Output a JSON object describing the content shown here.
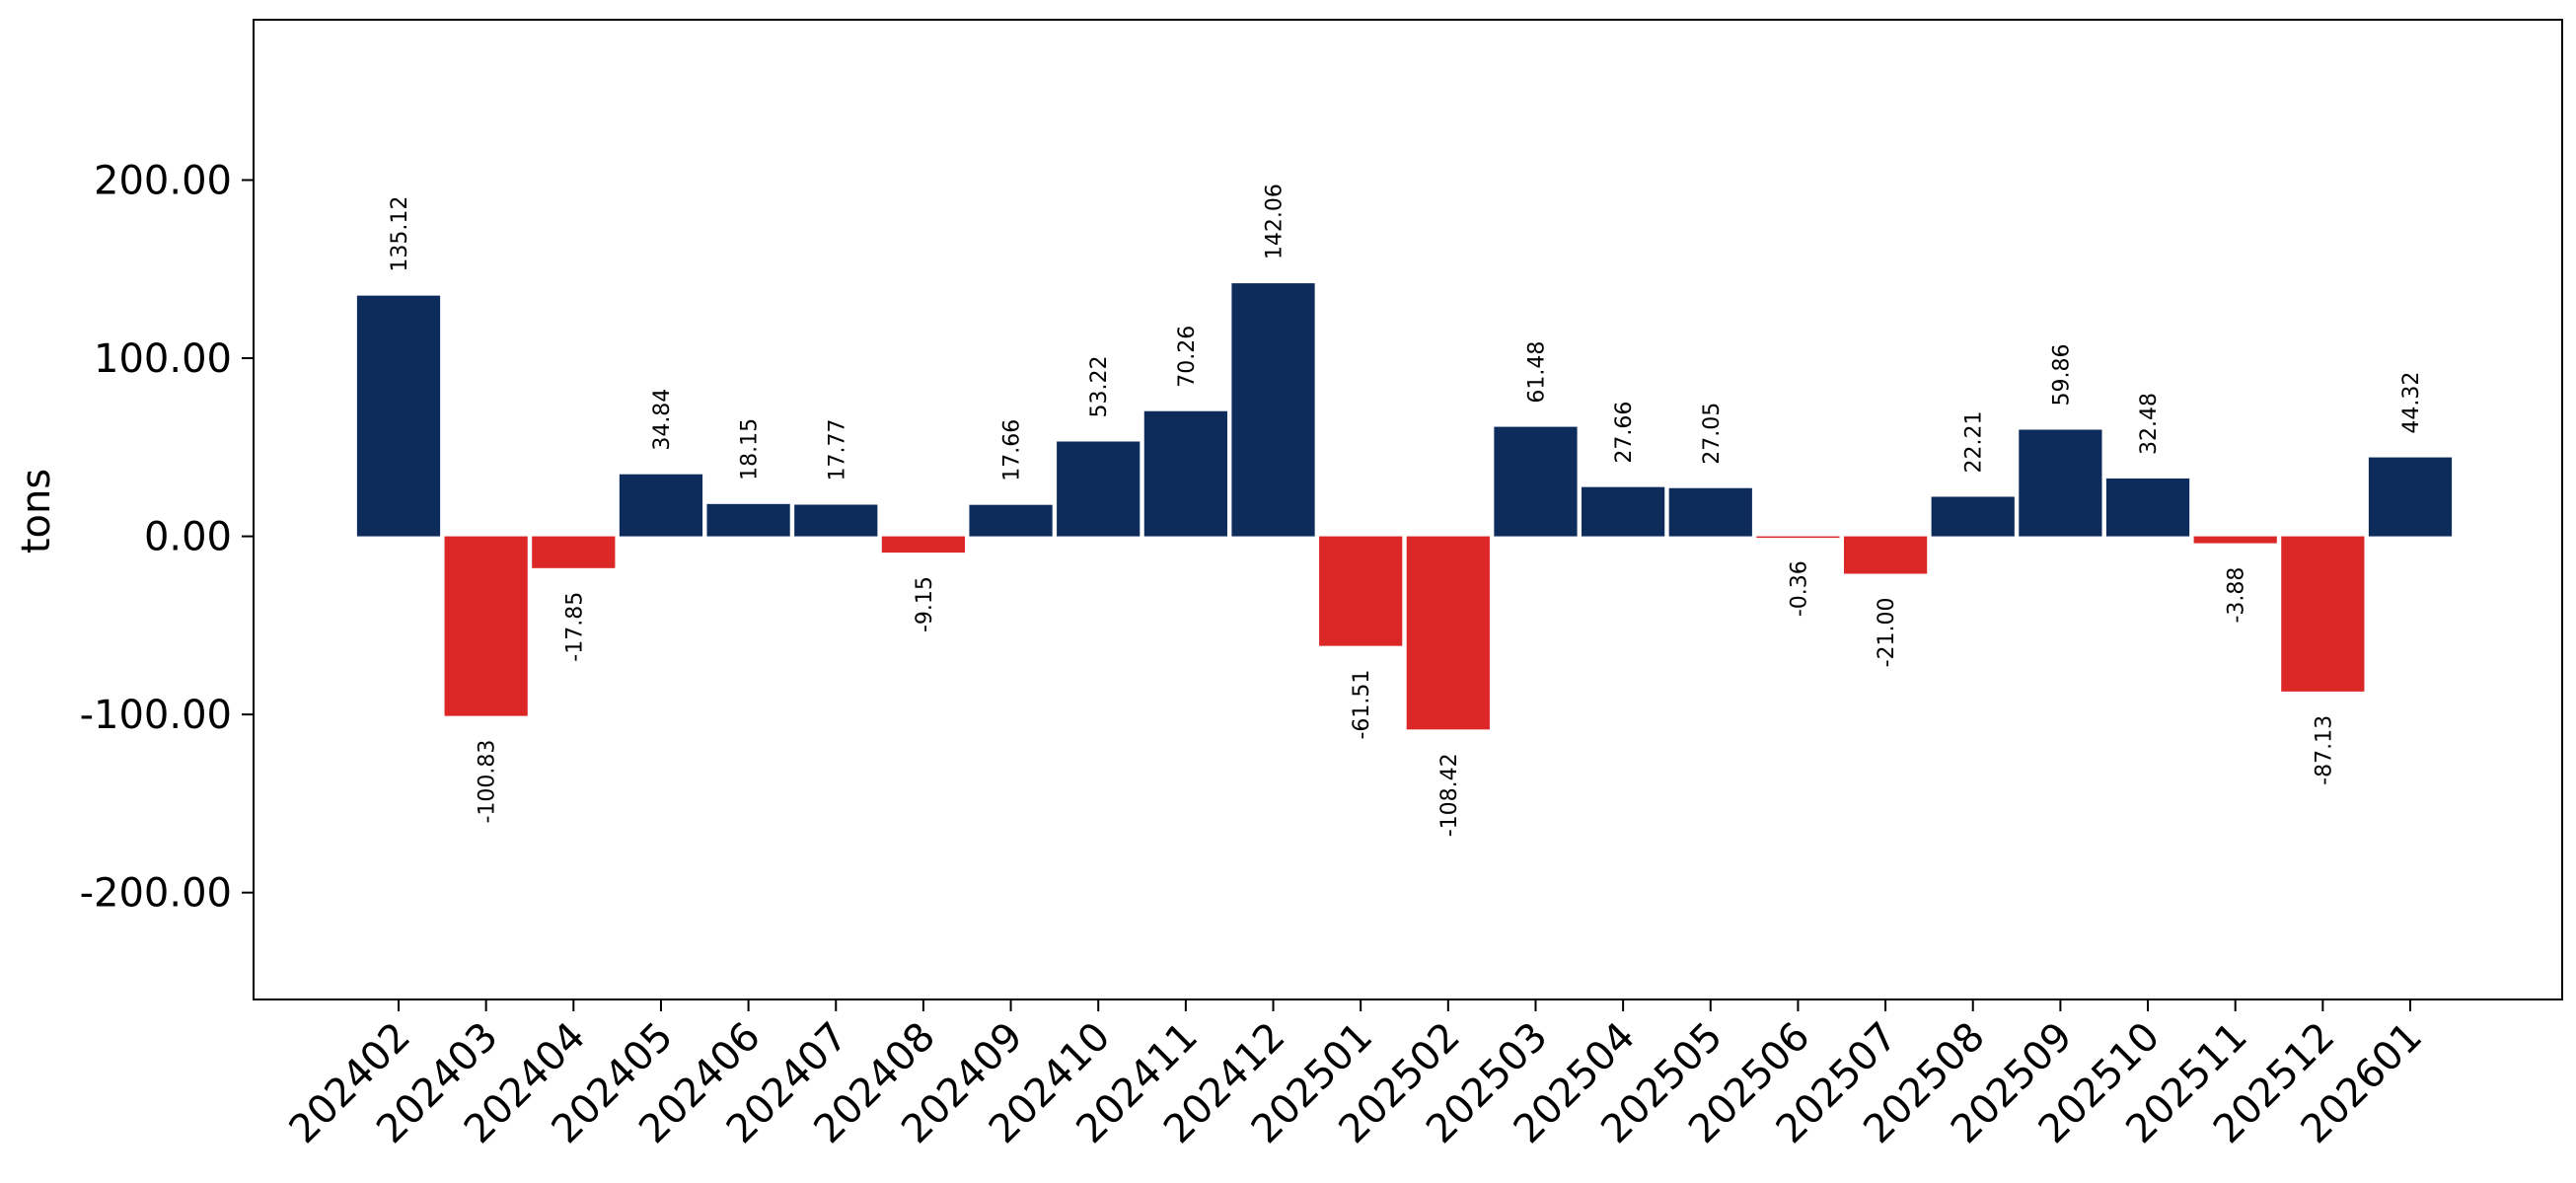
{
  "chart_data": {
    "type": "bar",
    "title": "",
    "xlabel": "",
    "ylabel": "tons",
    "ylim": [
      -260,
      290
    ],
    "yticks": [
      -200,
      -100,
      0,
      100,
      200
    ],
    "ytick_labels": [
      "-200.00",
      "-100.00",
      "0.00",
      "100.00",
      "200.00"
    ],
    "grid": false,
    "categories": [
      "202402",
      "202403",
      "202404",
      "202405",
      "202406",
      "202407",
      "202408",
      "202409",
      "202410",
      "202411",
      "202412",
      "202501",
      "202502",
      "202503",
      "202504",
      "202505",
      "202506",
      "202507",
      "202508",
      "202509",
      "202510",
      "202511",
      "202512",
      "202601"
    ],
    "values": [
      135.12,
      -100.83,
      -17.85,
      34.84,
      18.15,
      17.77,
      -9.15,
      17.66,
      53.22,
      70.26,
      142.06,
      -61.51,
      -108.42,
      61.48,
      27.66,
      27.05,
      -0.36,
      -21.0,
      22.21,
      59.86,
      32.48,
      -3.88,
      -87.13,
      44.32
    ],
    "value_labels": [
      "135.12",
      "-100.83",
      "-17.85",
      "34.84",
      "18.15",
      "17.77",
      "-9.15",
      "17.66",
      "53.22",
      "70.26",
      "142.06",
      "-61.51",
      "-108.42",
      "61.48",
      "27.66",
      "27.05",
      "-0.36",
      "-21.00",
      "22.21",
      "59.86",
      "32.48",
      "-3.88",
      "-87.13",
      "44.32"
    ],
    "colors": {
      "positive": "#0d2c5c",
      "negative": "#dc2727"
    }
  }
}
